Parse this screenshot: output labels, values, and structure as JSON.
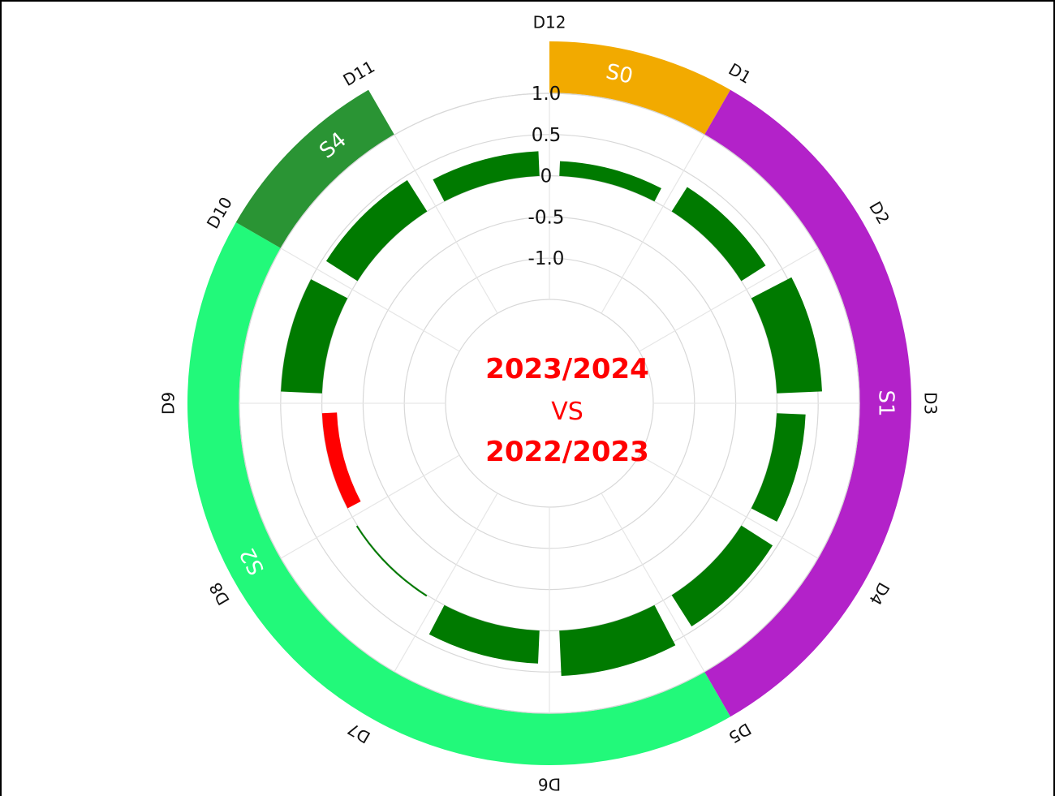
{
  "chart_data": {
    "type": "radial-bar",
    "center_text": {
      "line1": "2023/2024",
      "line2": "VS",
      "line3": "2022/2023"
    },
    "ticks": [
      "1.0",
      "0.5",
      "0",
      "-0.5",
      "-1.0"
    ],
    "tick_values": [
      1.0,
      0.5,
      0,
      -0.5,
      -1.0
    ],
    "rlim": [
      -1.5,
      1.0
    ],
    "categories": [
      "D12",
      "D1",
      "D2",
      "D3",
      "D4",
      "D5",
      "D6",
      "D7",
      "D8",
      "D9",
      "D10",
      "D11"
    ],
    "values": [
      0.18,
      0.35,
      0.55,
      0.35,
      0.45,
      0.55,
      0.4,
      0.02,
      -0.18,
      0.5,
      0.45,
      0.3
    ],
    "positive_color": "#007a00",
    "negative_color": "#ff0000",
    "seasons": [
      {
        "label": "S0",
        "start_index": 0,
        "count": 1,
        "color": "#f2aa00"
      },
      {
        "label": "S1",
        "start_index": 1,
        "count": 4,
        "color": "#b322c9"
      },
      {
        "label": "S2",
        "start_index": 5,
        "count": 5,
        "color": "#22f97a"
      },
      {
        "label": "S4",
        "start_index": 10,
        "count": 1,
        "color": "#2a9434"
      }
    ]
  }
}
